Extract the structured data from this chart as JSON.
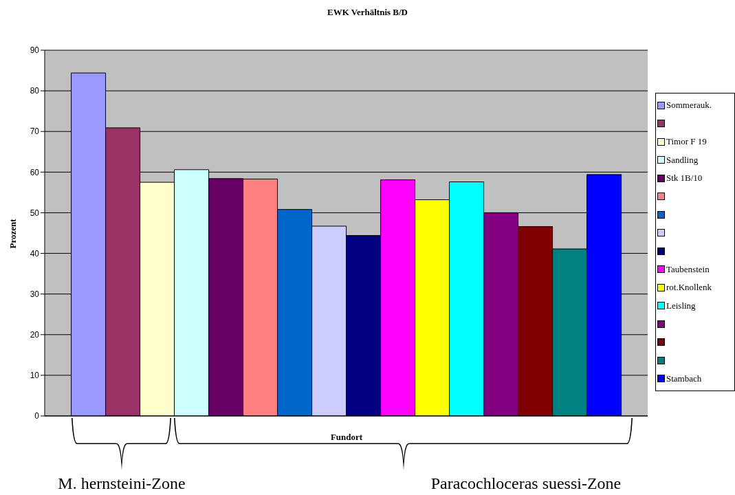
{
  "chart_data": {
    "type": "bar",
    "title": "EWK Verhältnis B/D",
    "xlabel": "Fundort",
    "ylabel": "Prozent",
    "categories": [
      null
    ],
    "series": [
      {
        "name": "Sommerauk.",
        "color": "#9999ff",
        "values": [
          84.4
        ]
      },
      {
        "color": "#993366",
        "values": [
          70.9
        ]
      },
      {
        "name": "Timor F 19",
        "color": "#ffffcc",
        "values": [
          57.5
        ]
      },
      {
        "name": "Sandling",
        "color": "#ccffff",
        "values": [
          60.6
        ]
      },
      {
        "name": "Stk 1B/10",
        "color": "#660066",
        "values": [
          58.4
        ]
      },
      {
        "color": "#ff8080",
        "values": [
          58.3
        ]
      },
      {
        "color": "#0066cc",
        "values": [
          50.8
        ]
      },
      {
        "color": "#ccccff",
        "values": [
          46.7
        ]
      },
      {
        "color": "#000080",
        "values": [
          44.4
        ]
      },
      {
        "name": "Taubenstein",
        "color": "#ff00ff",
        "values": [
          58.1
        ]
      },
      {
        "name": "rot.Knollenk",
        "color": "#ffff00",
        "values": [
          53.2
        ]
      },
      {
        "name": "Leisling",
        "color": "#00ffff",
        "values": [
          57.6
        ]
      },
      {
        "color": "#800080",
        "values": [
          50.0
        ]
      },
      {
        "color": "#800000",
        "values": [
          46.6
        ]
      },
      {
        "color": "#008080",
        "values": [
          41.1
        ]
      },
      {
        "name": "Stambach",
        "color": "#0000ff",
        "values": [
          59.4
        ]
      }
    ],
    "ylim": [
      0,
      90
    ],
    "yticks": [
      0,
      10,
      20,
      30,
      40,
      50,
      60,
      70,
      80,
      90
    ],
    "grid": "y",
    "legend": "right",
    "annotations": [
      "M. hernsteini-Zone",
      "Paracochloceras suessi-Zone"
    ]
  }
}
